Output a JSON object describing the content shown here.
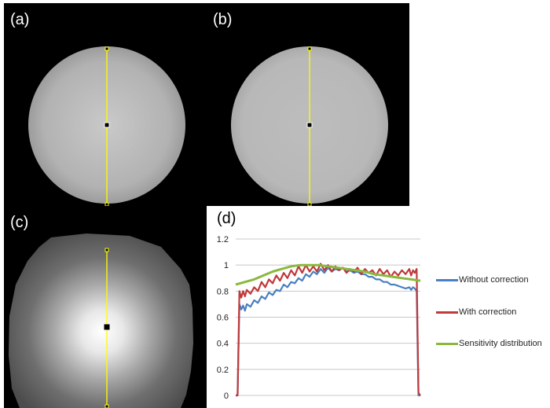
{
  "panels": {
    "a": {
      "label": "(a)",
      "kind": "phantom image without correction"
    },
    "b": {
      "label": "(b)",
      "kind": "phantom image with correction"
    },
    "c": {
      "label": "(c)",
      "kind": "sensitivity map"
    },
    "d": {
      "label": "(d)"
    }
  },
  "colors": {
    "without": "#4a7fc1",
    "with": "#c0393b",
    "sensitivity": "#8ab83f",
    "profile_line": "#ffff00",
    "grid": "#c8c8c8"
  },
  "chart_data": {
    "type": "line",
    "title": "",
    "xlabel": "",
    "ylabel": "",
    "ylim": [
      0,
      1.2
    ],
    "yticks": [
      "0",
      "0.2",
      "0.4",
      "0.6",
      "0.8",
      "1",
      "1.2"
    ],
    "x_range": [
      0,
      100
    ],
    "series": [
      {
        "name": "Without correction",
        "color": "#4a7fc1",
        "x": [
          0,
          1,
          2,
          3,
          4,
          5,
          6,
          8,
          10,
          12,
          14,
          16,
          18,
          20,
          22,
          24,
          26,
          28,
          30,
          32,
          34,
          36,
          38,
          40,
          42,
          44,
          46,
          48,
          50,
          52,
          54,
          56,
          58,
          60,
          62,
          64,
          66,
          68,
          70,
          72,
          74,
          76,
          78,
          80,
          82,
          84,
          86,
          88,
          90,
          92,
          94,
          95,
          96,
          97,
          98,
          99,
          100
        ],
        "values": [
          0,
          0,
          0.7,
          0.66,
          0.69,
          0.65,
          0.7,
          0.68,
          0.73,
          0.71,
          0.76,
          0.74,
          0.79,
          0.77,
          0.81,
          0.8,
          0.85,
          0.83,
          0.87,
          0.86,
          0.9,
          0.88,
          0.93,
          0.91,
          0.95,
          0.93,
          0.97,
          0.94,
          0.98,
          0.95,
          0.97,
          0.96,
          0.98,
          0.95,
          0.96,
          0.94,
          0.95,
          0.93,
          0.93,
          0.91,
          0.91,
          0.89,
          0.89,
          0.87,
          0.87,
          0.85,
          0.85,
          0.84,
          0.83,
          0.82,
          0.83,
          0.81,
          0.83,
          0.82,
          0.8,
          0,
          0
        ]
      },
      {
        "name": "With correction",
        "color": "#c0393b",
        "x": [
          0,
          1,
          2,
          3,
          4,
          5,
          6,
          8,
          10,
          12,
          14,
          16,
          18,
          20,
          22,
          24,
          26,
          28,
          30,
          32,
          34,
          36,
          38,
          40,
          42,
          44,
          46,
          48,
          50,
          52,
          54,
          56,
          58,
          60,
          62,
          64,
          66,
          68,
          70,
          72,
          74,
          76,
          78,
          80,
          82,
          84,
          86,
          88,
          90,
          92,
          94,
          95,
          96,
          97,
          98,
          99,
          100
        ],
        "values": [
          0,
          0,
          0.8,
          0.75,
          0.8,
          0.76,
          0.81,
          0.78,
          0.83,
          0.8,
          0.87,
          0.83,
          0.89,
          0.86,
          0.92,
          0.88,
          0.94,
          0.9,
          0.96,
          0.92,
          0.99,
          0.94,
          1.0,
          0.95,
          0.99,
          0.95,
          1.01,
          0.96,
          1.0,
          0.95,
          0.99,
          0.96,
          0.98,
          0.94,
          0.97,
          0.95,
          0.98,
          0.93,
          0.97,
          0.94,
          0.96,
          0.92,
          0.97,
          0.93,
          0.96,
          0.91,
          0.95,
          0.92,
          0.96,
          0.93,
          0.97,
          0.92,
          0.96,
          0.94,
          0.97,
          0.02,
          0
        ]
      },
      {
        "name": "Sensitivity distribution",
        "color": "#8ab83f",
        "x": [
          0,
          5,
          10,
          15,
          20,
          25,
          30,
          35,
          40,
          45,
          50,
          55,
          60,
          65,
          70,
          75,
          80,
          85,
          90,
          95,
          100
        ],
        "values": [
          0.85,
          0.87,
          0.89,
          0.92,
          0.95,
          0.97,
          0.99,
          1.0,
          1.0,
          1.0,
          0.99,
          0.98,
          0.97,
          0.96,
          0.95,
          0.93,
          0.92,
          0.91,
          0.9,
          0.89,
          0.88
        ]
      }
    ],
    "legend": {
      "placement": "right",
      "entries": [
        "Without correction",
        "With correction",
        "Sensitivity distribution"
      ]
    }
  }
}
